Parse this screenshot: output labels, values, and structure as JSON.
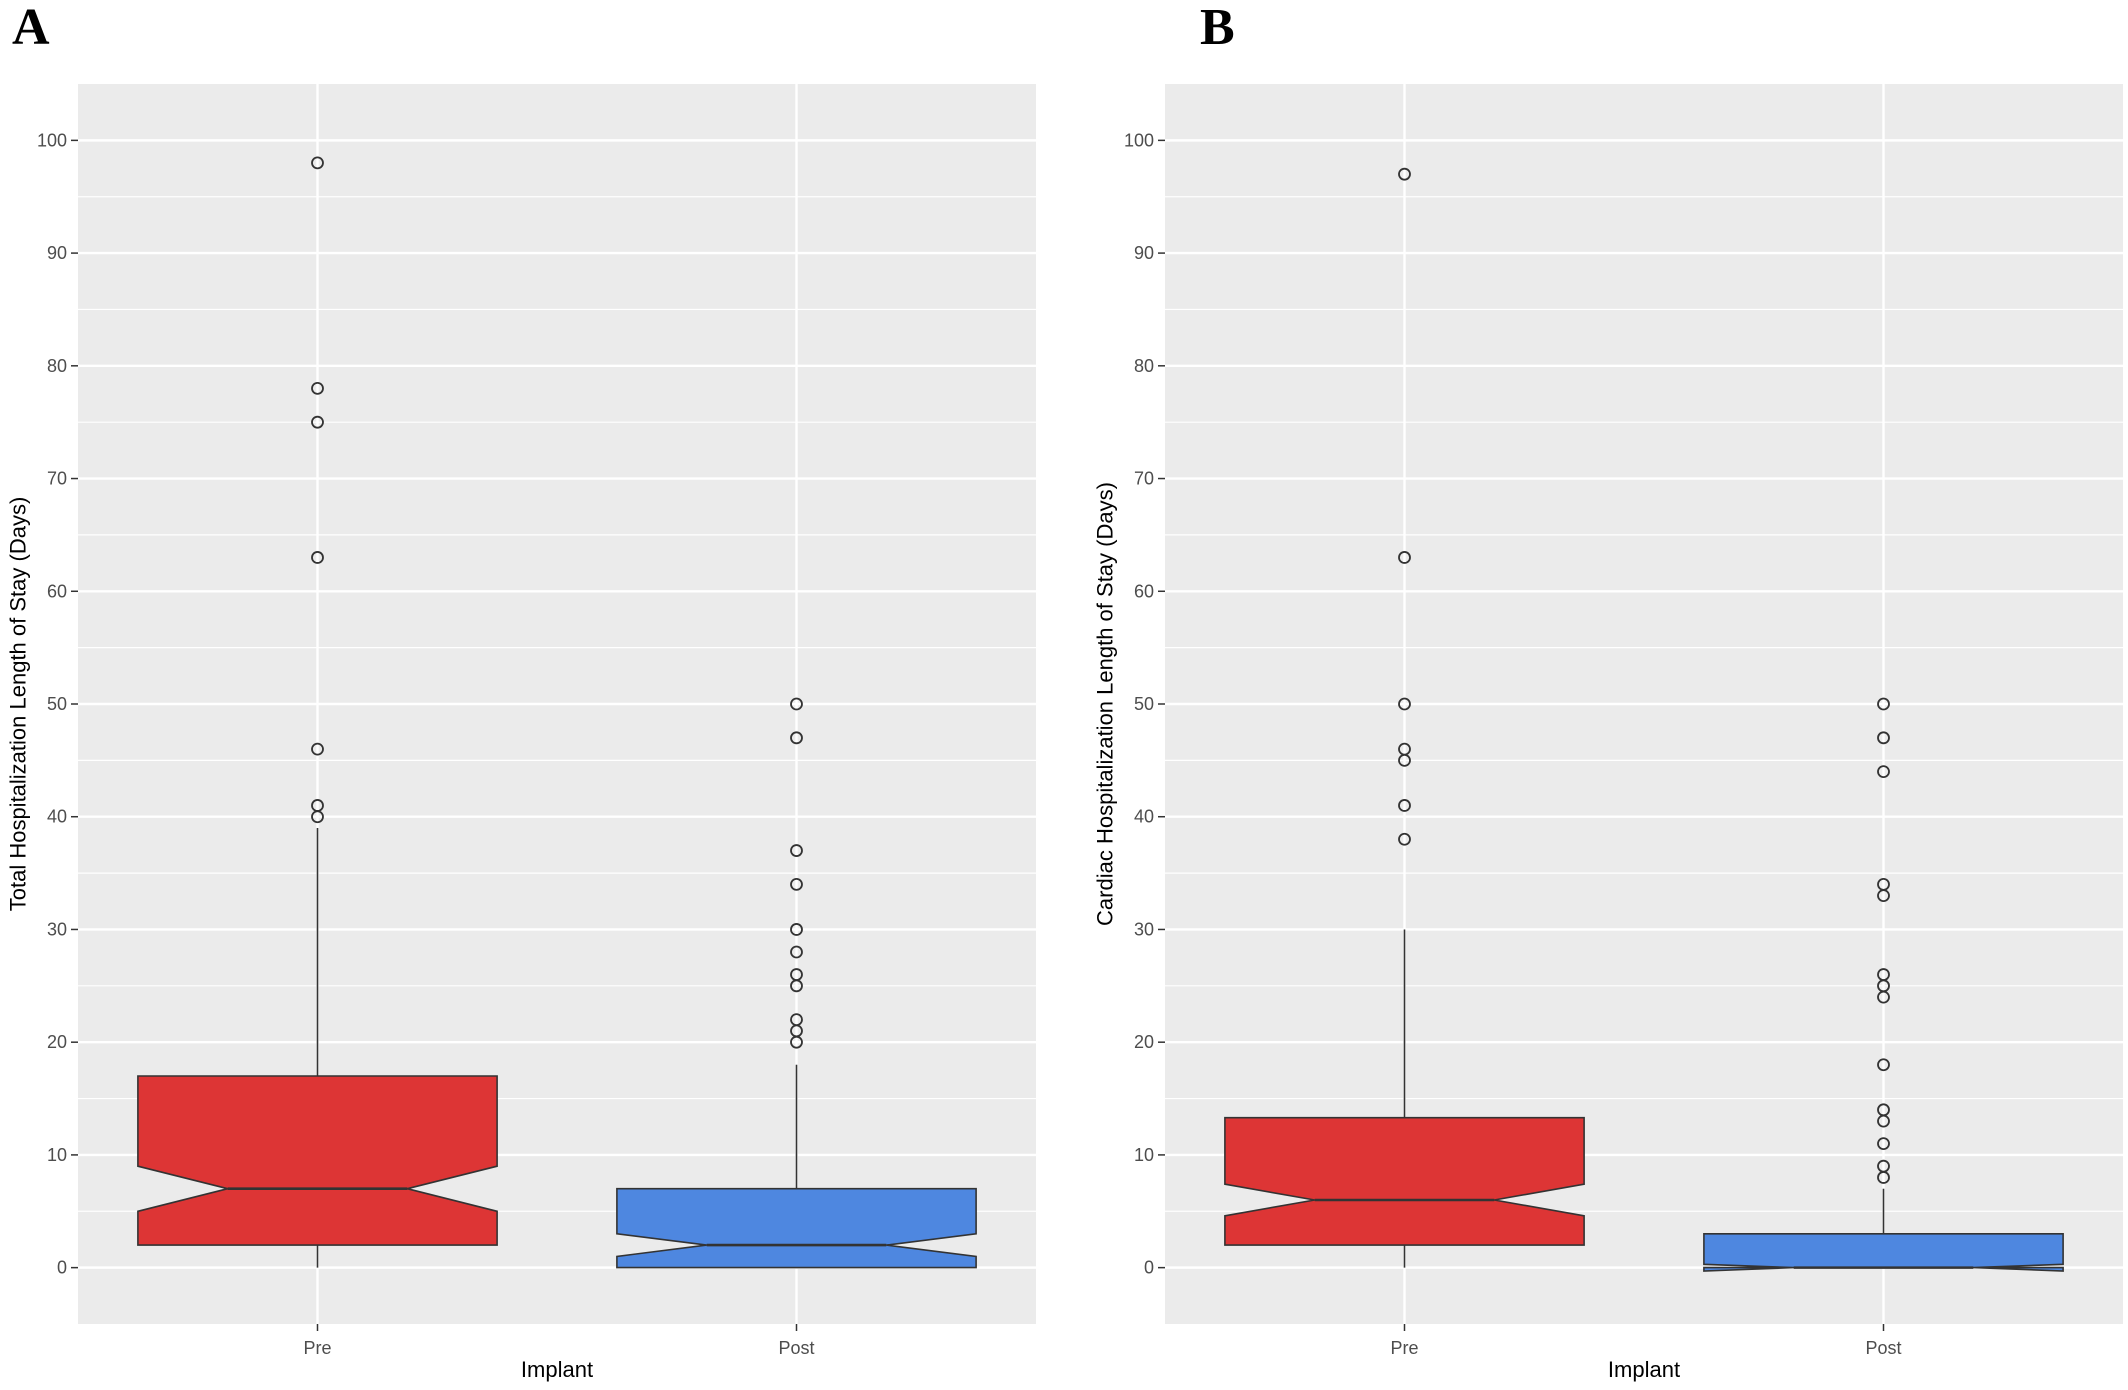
{
  "chart_data": [
    {
      "panel_label": "A",
      "type": "boxplot",
      "notched": true,
      "xlabel": "Implant",
      "ylabel": "Total Hospitalization Length of Stay (Days)",
      "ylim": [
        -5,
        105
      ],
      "yticks": [
        "0",
        "10",
        "20",
        "30",
        "40",
        "50",
        "60",
        "70",
        "80",
        "90",
        "100"
      ],
      "grid": true,
      "background": "#ebebeb",
      "categories": [
        "Pre",
        "Post"
      ],
      "boxes": [
        {
          "category": "Pre",
          "color": "#dd3535",
          "whisker_low": 0,
          "q1": 2,
          "median": 7,
          "q3": 17,
          "whisker_high": 39,
          "notch_low": 5,
          "notch_high": 9,
          "outliers": [
            40,
            41,
            46,
            63,
            75,
            78,
            98
          ]
        },
        {
          "category": "Post",
          "color": "#4e87e0",
          "whisker_low": 0,
          "q1": 0,
          "median": 2,
          "q3": 7,
          "whisker_high": 18,
          "notch_low": 1,
          "notch_high": 3,
          "outliers": [
            20,
            21,
            22,
            25,
            26,
            28,
            30,
            34,
            37,
            47,
            50
          ]
        }
      ]
    },
    {
      "panel_label": "B",
      "type": "boxplot",
      "notched": true,
      "xlabel": "Implant",
      "ylabel": "Cardiac Hospitalization Length of Stay (Days)",
      "ylim": [
        -5,
        105
      ],
      "yticks": [
        "0",
        "10",
        "20",
        "30",
        "40",
        "50",
        "60",
        "70",
        "80",
        "90",
        "100"
      ],
      "grid": true,
      "background": "#ebebeb",
      "categories": [
        "Pre",
        "Post"
      ],
      "boxes": [
        {
          "category": "Pre",
          "color": "#dd3535",
          "whisker_low": 0,
          "q1": 2,
          "median": 6,
          "q3": 13.3,
          "whisker_high": 30,
          "notch_low": 4.6,
          "notch_high": 7.4,
          "outliers": [
            38,
            41,
            45,
            46,
            50,
            63,
            97
          ]
        },
        {
          "category": "Post",
          "color": "#4e87e0",
          "whisker_low": 0,
          "q1": 0,
          "median": 0,
          "q3": 3,
          "whisker_high": 7,
          "notch_low": -0.3,
          "notch_high": 0.3,
          "outliers": [
            8,
            9,
            11,
            13,
            14,
            18,
            24,
            25,
            26,
            33,
            34,
            44,
            47,
            50
          ]
        }
      ]
    }
  ]
}
